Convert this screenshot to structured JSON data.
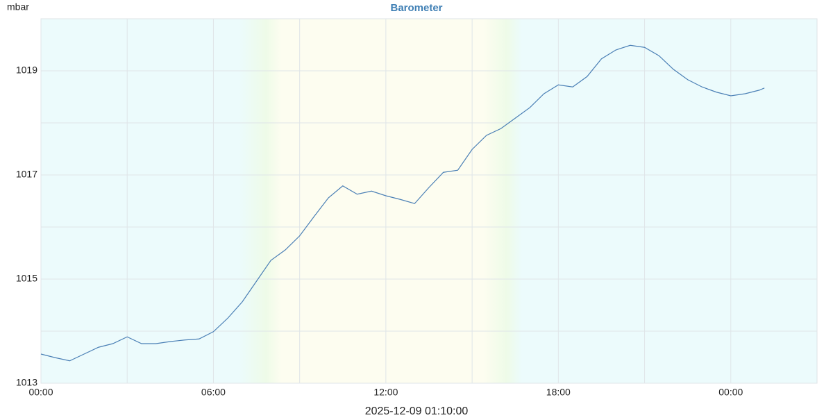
{
  "chart_data": {
    "type": "line",
    "title": "Barometer",
    "y_label": "mbar",
    "footer": "2025-12-09 01:10:00",
    "x": [
      0,
      0.5,
      1,
      1.5,
      2,
      2.5,
      3,
      3.5,
      4,
      4.5,
      5,
      5.5,
      6,
      6.5,
      7,
      7.5,
      8,
      8.5,
      9,
      9.5,
      10,
      10.5,
      11,
      11.5,
      12,
      12.5,
      13,
      13.5,
      14,
      14.5,
      15,
      15.5,
      16,
      16.5,
      17,
      17.5,
      18,
      18.5,
      19,
      19.5,
      20,
      20.5,
      21,
      21.5,
      22,
      22.5,
      23,
      23.5,
      24,
      24.5,
      25,
      25.17
    ],
    "series": [
      {
        "name": "Barometer",
        "color": "#4a7fb5",
        "values": [
          1013.56,
          1013.49,
          1013.43,
          1013.56,
          1013.69,
          1013.76,
          1013.89,
          1013.76,
          1013.76,
          1013.8,
          1013.83,
          1013.85,
          1013.99,
          1014.25,
          1014.56,
          1014.96,
          1015.36,
          1015.56,
          1015.83,
          1016.2,
          1016.56,
          1016.79,
          1016.63,
          1016.69,
          1016.6,
          1016.53,
          1016.45,
          1016.76,
          1017.05,
          1017.09,
          1017.49,
          1017.76,
          1017.89,
          1018.09,
          1018.29,
          1018.56,
          1018.73,
          1018.69,
          1018.89,
          1019.23,
          1019.4,
          1019.49,
          1019.45,
          1019.29,
          1019.03,
          1018.83,
          1018.69,
          1018.59,
          1018.52,
          1018.56,
          1018.63,
          1018.67
        ]
      }
    ],
    "xlim": [
      0,
      27
    ],
    "xticks": [
      {
        "value": 0,
        "label": "00:00"
      },
      {
        "value": 6,
        "label": "06:00"
      },
      {
        "value": 12,
        "label": "12:00"
      },
      {
        "value": 18,
        "label": "18:00"
      },
      {
        "value": 24,
        "label": "00:00"
      }
    ],
    "ylim": [
      1013,
      1020
    ],
    "yticks": [
      1013,
      1015,
      1017,
      1019
    ],
    "grid": true
  }
}
